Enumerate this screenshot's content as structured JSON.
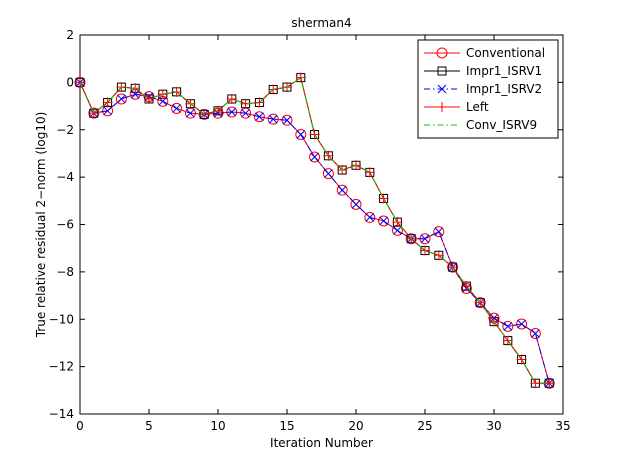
{
  "chart_data": {
    "type": "line",
    "title": "sherman4",
    "xlabel": "Iteration Number",
    "ylabel": "True relative residual 2−norm (log10)",
    "xlim": [
      0,
      35
    ],
    "ylim": [
      -14,
      2
    ],
    "xticks": [
      0,
      5,
      10,
      15,
      20,
      25,
      30,
      35
    ],
    "yticks": [
      2,
      0,
      -2,
      -4,
      -6,
      -8,
      -10,
      -12,
      -14
    ],
    "legend_position": "top-right",
    "series": [
      {
        "name": "Conventional",
        "color": "#ff0000",
        "marker": "circle",
        "dash": "solid",
        "x": [
          0,
          1,
          2,
          3,
          4,
          5,
          6,
          7,
          8,
          9,
          10,
          11,
          12,
          13,
          14,
          15,
          16,
          17,
          18,
          19,
          20,
          21,
          22,
          23,
          24,
          25,
          26,
          27,
          28,
          29,
          30,
          31,
          32,
          33,
          34
        ],
        "y": [
          0,
          -1.3,
          -1.2,
          -0.7,
          -0.5,
          -0.6,
          -0.8,
          -1.1,
          -1.3,
          -1.35,
          -1.3,
          -1.25,
          -1.3,
          -1.45,
          -1.55,
          -1.6,
          -2.2,
          -3.15,
          -3.85,
          -4.55,
          -5.15,
          -5.7,
          -5.85,
          -6.25,
          -6.6,
          -6.6,
          -6.3,
          -7.8,
          -8.7,
          -9.3,
          -9.95,
          -10.3,
          -10.2,
          -10.6,
          -12.7
        ]
      },
      {
        "name": "Impr1_ISRV1",
        "color": "#000000",
        "marker": "square",
        "dash": "solid",
        "x": [
          0,
          1,
          2,
          3,
          4,
          5,
          6,
          7,
          8,
          9,
          10,
          11,
          12,
          13,
          14,
          15,
          16,
          17,
          18,
          19,
          20,
          21,
          22,
          23,
          24,
          25,
          26,
          27,
          28,
          29,
          30,
          31,
          32,
          33,
          34
        ],
        "y": [
          0,
          -1.3,
          -0.85,
          -0.2,
          -0.25,
          -0.7,
          -0.5,
          -0.4,
          -0.9,
          -1.35,
          -1.2,
          -0.7,
          -0.9,
          -0.85,
          -0.3,
          -0.2,
          0.2,
          -2.2,
          -3.1,
          -3.7,
          -3.5,
          -3.8,
          -4.9,
          -5.9,
          -6.6,
          -7.1,
          -7.3,
          -7.8,
          -8.6,
          -9.3,
          -10.1,
          -10.9,
          -11.7,
          -12.7,
          -12.7
        ]
      },
      {
        "name": "Impr1_ISRV2",
        "color": "#0000ff",
        "marker": "x",
        "dash": "dashdot",
        "x": [
          0,
          1,
          2,
          3,
          4,
          5,
          6,
          7,
          8,
          9,
          10,
          11,
          12,
          13,
          14,
          15,
          16,
          17,
          18,
          19,
          20,
          21,
          22,
          23,
          24,
          25,
          26,
          27,
          28,
          29,
          30,
          31,
          32,
          33,
          34
        ],
        "y": [
          0,
          -1.3,
          -1.2,
          -0.7,
          -0.5,
          -0.6,
          -0.8,
          -1.1,
          -1.3,
          -1.35,
          -1.3,
          -1.25,
          -1.3,
          -1.45,
          -1.55,
          -1.6,
          -2.2,
          -3.15,
          -3.85,
          -4.55,
          -5.15,
          -5.7,
          -5.85,
          -6.25,
          -6.6,
          -6.6,
          -6.3,
          -7.8,
          -8.7,
          -9.3,
          -9.95,
          -10.3,
          -10.2,
          -10.6,
          -12.7
        ]
      },
      {
        "name": "Left",
        "color": "#ff0000",
        "marker": "plus",
        "dash": "solid",
        "x": [
          0,
          1,
          2,
          3,
          4,
          5,
          6,
          7,
          8,
          9,
          10,
          11,
          12,
          13,
          14,
          15,
          16,
          17,
          18,
          19,
          20,
          21,
          22,
          23,
          24,
          25,
          26,
          27,
          28,
          29,
          30,
          31,
          32,
          33,
          34
        ],
        "y": [
          0,
          -1.3,
          -0.85,
          -0.2,
          -0.25,
          -0.7,
          -0.5,
          -0.4,
          -0.9,
          -1.35,
          -1.2,
          -0.7,
          -0.9,
          -0.85,
          -0.3,
          -0.2,
          0.2,
          -2.2,
          -3.1,
          -3.7,
          -3.5,
          -3.8,
          -4.9,
          -5.9,
          -6.6,
          -7.1,
          -7.3,
          -7.8,
          -8.6,
          -9.3,
          -10.1,
          -10.9,
          -11.7,
          -12.7,
          -12.7
        ]
      },
      {
        "name": "Conv_ISRV9",
        "color": "#00cc00",
        "marker": "none",
        "dash": "dashdot",
        "x": [
          0,
          1,
          2,
          3,
          4,
          5,
          6,
          7,
          8,
          9,
          10,
          11,
          12,
          13,
          14,
          15,
          16,
          17,
          18,
          19,
          20,
          21,
          22,
          23,
          24,
          25,
          26,
          27,
          28,
          29,
          30,
          31,
          32,
          33,
          34
        ],
        "y": [
          0,
          -1.3,
          -0.85,
          -0.2,
          -0.25,
          -0.7,
          -0.5,
          -0.4,
          -0.9,
          -1.35,
          -1.2,
          -0.7,
          -0.9,
          -0.85,
          -0.3,
          -0.2,
          0.2,
          -2.2,
          -3.1,
          -3.7,
          -3.5,
          -3.8,
          -4.9,
          -5.9,
          -6.6,
          -7.1,
          -7.3,
          -7.8,
          -8.6,
          -9.3,
          -10.1,
          -10.9,
          -11.7,
          -12.7,
          -12.7
        ]
      }
    ]
  }
}
